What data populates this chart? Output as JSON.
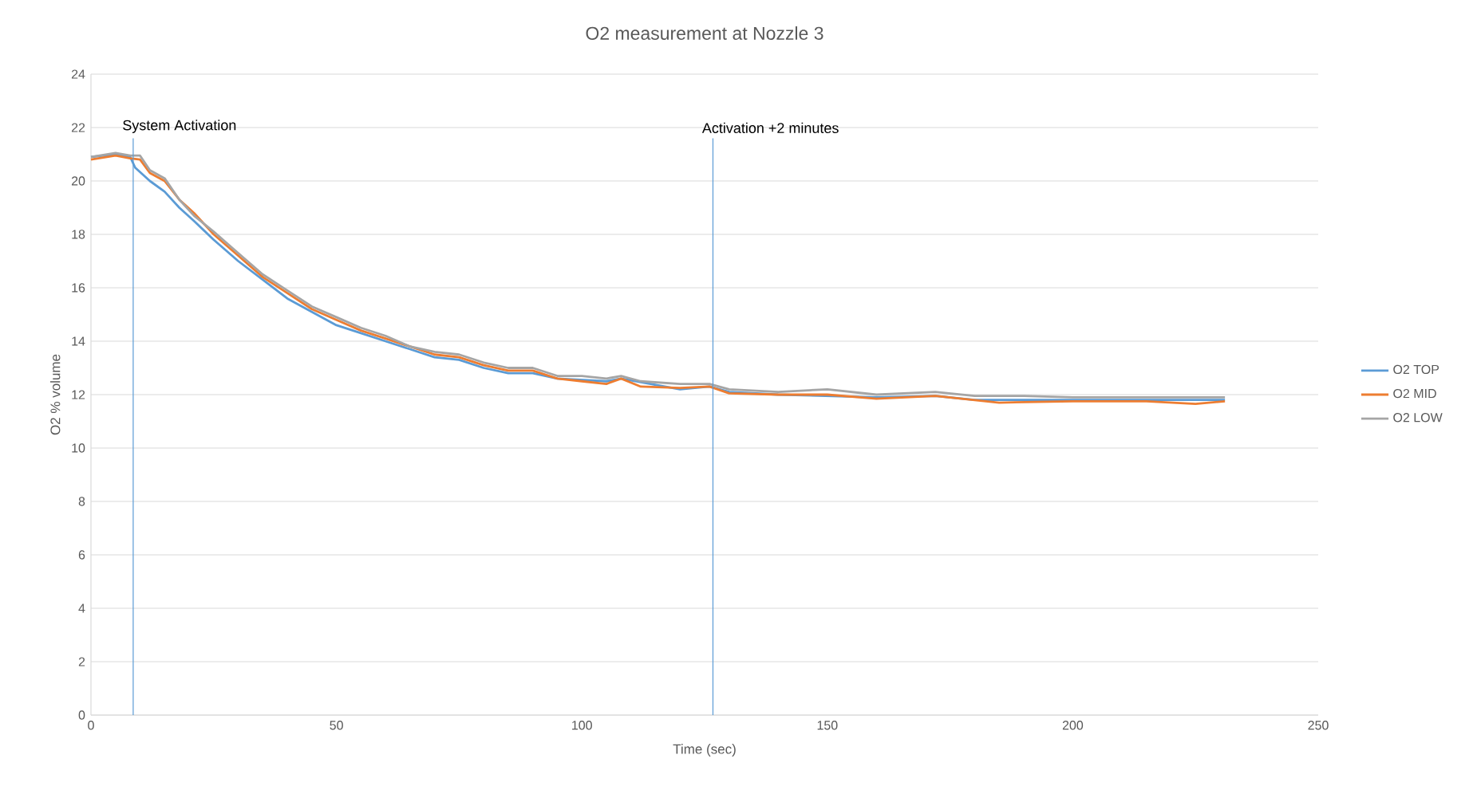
{
  "chart_data": {
    "type": "line",
    "title": "O2 measurement at Nozzle 3",
    "xlabel": "Time (sec)",
    "ylabel": "O2 % volume",
    "xlim": [
      0,
      250
    ],
    "xticks": [
      0,
      50,
      100,
      150,
      200,
      250
    ],
    "ylim": [
      0,
      24
    ],
    "yticks": [
      0,
      2,
      4,
      6,
      8,
      10,
      12,
      14,
      16,
      18,
      20,
      22,
      24
    ],
    "grid": "y",
    "legend": "right",
    "marker": "none",
    "line_style": "solid",
    "ref_lines": [
      {
        "axis": "x",
        "value": 8.6,
        "label": "System Activation",
        "color": "#5b9bd5"
      },
      {
        "axis": "x",
        "value": 126.7,
        "label": "Activation +2 minutes",
        "color": "#5b9bd5"
      }
    ],
    "series": [
      {
        "name": "O2 TOP",
        "color": "#5b9bd5",
        "x": [
          0,
          5,
          8,
          9,
          12,
          15,
          18,
          21,
          25,
          30,
          35,
          40,
          45,
          50,
          55,
          60,
          65,
          70,
          75,
          80,
          85,
          90,
          95,
          100,
          105,
          108,
          112,
          120,
          126,
          130,
          140,
          150,
          160,
          172,
          180,
          190,
          200,
          210,
          220,
          231
        ],
        "values": [
          20.9,
          21.0,
          20.9,
          20.5,
          20.0,
          19.6,
          19.0,
          18.5,
          17.8,
          17.0,
          16.3,
          15.6,
          15.1,
          14.6,
          14.3,
          14.0,
          13.7,
          13.4,
          13.3,
          13.0,
          12.8,
          12.8,
          12.6,
          null,
          12.5,
          12.6,
          null,
          12.2,
          12.3,
          12.1,
          12.0,
          null,
          11.9,
          11.95,
          11.8,
          11.8,
          11.8,
          11.8,
          11.8,
          11.8
        ]
      },
      {
        "name": "O2 MID",
        "color": "#ed7d31",
        "x": [
          0,
          5,
          8,
          10,
          12,
          15,
          18,
          21,
          25,
          30,
          35,
          40,
          45,
          50,
          55,
          60,
          65,
          70,
          75,
          80,
          85,
          90,
          95,
          100,
          105,
          108,
          112,
          120,
          126,
          130,
          140,
          150,
          160,
          172,
          185,
          200,
          215,
          225,
          231
        ],
        "values": [
          20.8,
          20.95,
          20.85,
          20.8,
          20.3,
          20.0,
          19.3,
          18.8,
          18.0,
          17.2,
          16.4,
          15.8,
          15.2,
          14.8,
          14.4,
          14.1,
          13.8,
          13.5,
          13.4,
          13.1,
          12.9,
          12.9,
          12.6,
          12.5,
          12.4,
          12.6,
          12.3,
          12.25,
          12.3,
          12.05,
          12.0,
          12.0,
          11.85,
          11.95,
          11.7,
          11.75,
          11.75,
          11.65,
          11.75
        ]
      },
      {
        "name": "O2 LOW",
        "color": "#a5a5a5",
        "x": [
          0,
          5,
          8,
          10,
          12,
          15,
          18,
          21,
          25,
          30,
          35,
          40,
          45,
          50,
          55,
          60,
          65,
          70,
          75,
          80,
          85,
          90,
          95,
          100,
          105,
          108,
          112,
          120,
          126,
          130,
          140,
          150,
          160,
          172,
          180,
          190,
          200,
          215,
          231
        ],
        "values": [
          20.9,
          21.05,
          20.95,
          20.95,
          20.4,
          20.1,
          19.3,
          18.7,
          18.1,
          17.3,
          16.5,
          15.9,
          15.3,
          14.9,
          14.5,
          14.2,
          13.8,
          13.6,
          13.5,
          13.2,
          13.0,
          13.0,
          12.7,
          12.7,
          12.6,
          12.7,
          12.5,
          12.4,
          12.4,
          12.2,
          12.1,
          12.2,
          12.0,
          12.1,
          11.95,
          11.95,
          11.9,
          11.9,
          11.9
        ]
      }
    ]
  }
}
